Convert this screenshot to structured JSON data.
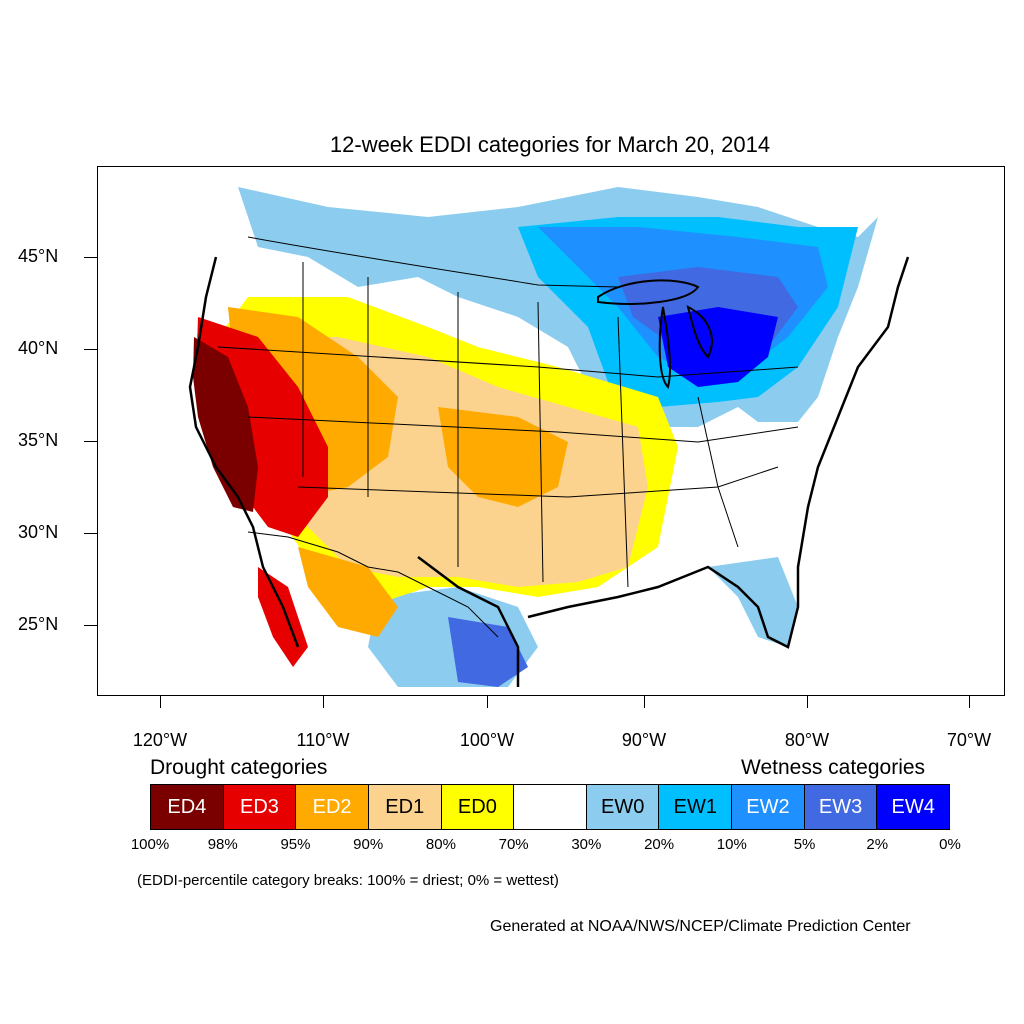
{
  "title": "12-week EDDI categories for March 20, 2014",
  "map": {
    "lat_labels": [
      "45°N",
      "40°N",
      "35°N",
      "30°N",
      "25°N"
    ],
    "lon_labels": [
      "120°W",
      "110°W",
      "100°W",
      "90°W",
      "80°W",
      "70°W"
    ],
    "land_color": "#ffffff",
    "outline_color": "#000000"
  },
  "legend": {
    "drought_heading": "Drought categories",
    "wetness_heading": "Wetness categories",
    "categories": [
      {
        "label": "ED4",
        "color": "#7a0000",
        "text_color": "#ffffff"
      },
      {
        "label": "ED3",
        "color": "#e60000",
        "text_color": "#ffffff"
      },
      {
        "label": "ED2",
        "color": "#ffaa00",
        "text_color": "#ffffff"
      },
      {
        "label": "ED1",
        "color": "#fcd38e",
        "text_color": "#000000"
      },
      {
        "label": "ED0",
        "color": "#ffff00",
        "text_color": "#000000"
      },
      {
        "label": "",
        "color": "#ffffff",
        "text_color": "#000000"
      },
      {
        "label": "EW0",
        "color": "#8ccdef",
        "text_color": "#000000"
      },
      {
        "label": "EW1",
        "color": "#00bfff",
        "text_color": "#000000"
      },
      {
        "label": "EW2",
        "color": "#1e90ff",
        "text_color": "#ffffff"
      },
      {
        "label": "EW3",
        "color": "#4169e1",
        "text_color": "#ffffff"
      },
      {
        "label": "EW4",
        "color": "#0000ff",
        "text_color": "#ffffff"
      }
    ],
    "breaks": [
      "100%",
      "98%",
      "95%",
      "90%",
      "80%",
      "70%",
      "30%",
      "20%",
      "10%",
      "5%",
      "2%",
      "0%"
    ]
  },
  "note": "(EDDI-percentile category breaks: 100% = driest; 0% = wettest)",
  "credit": "Generated at NOAA/NWS/NCEP/Climate Prediction Center"
}
